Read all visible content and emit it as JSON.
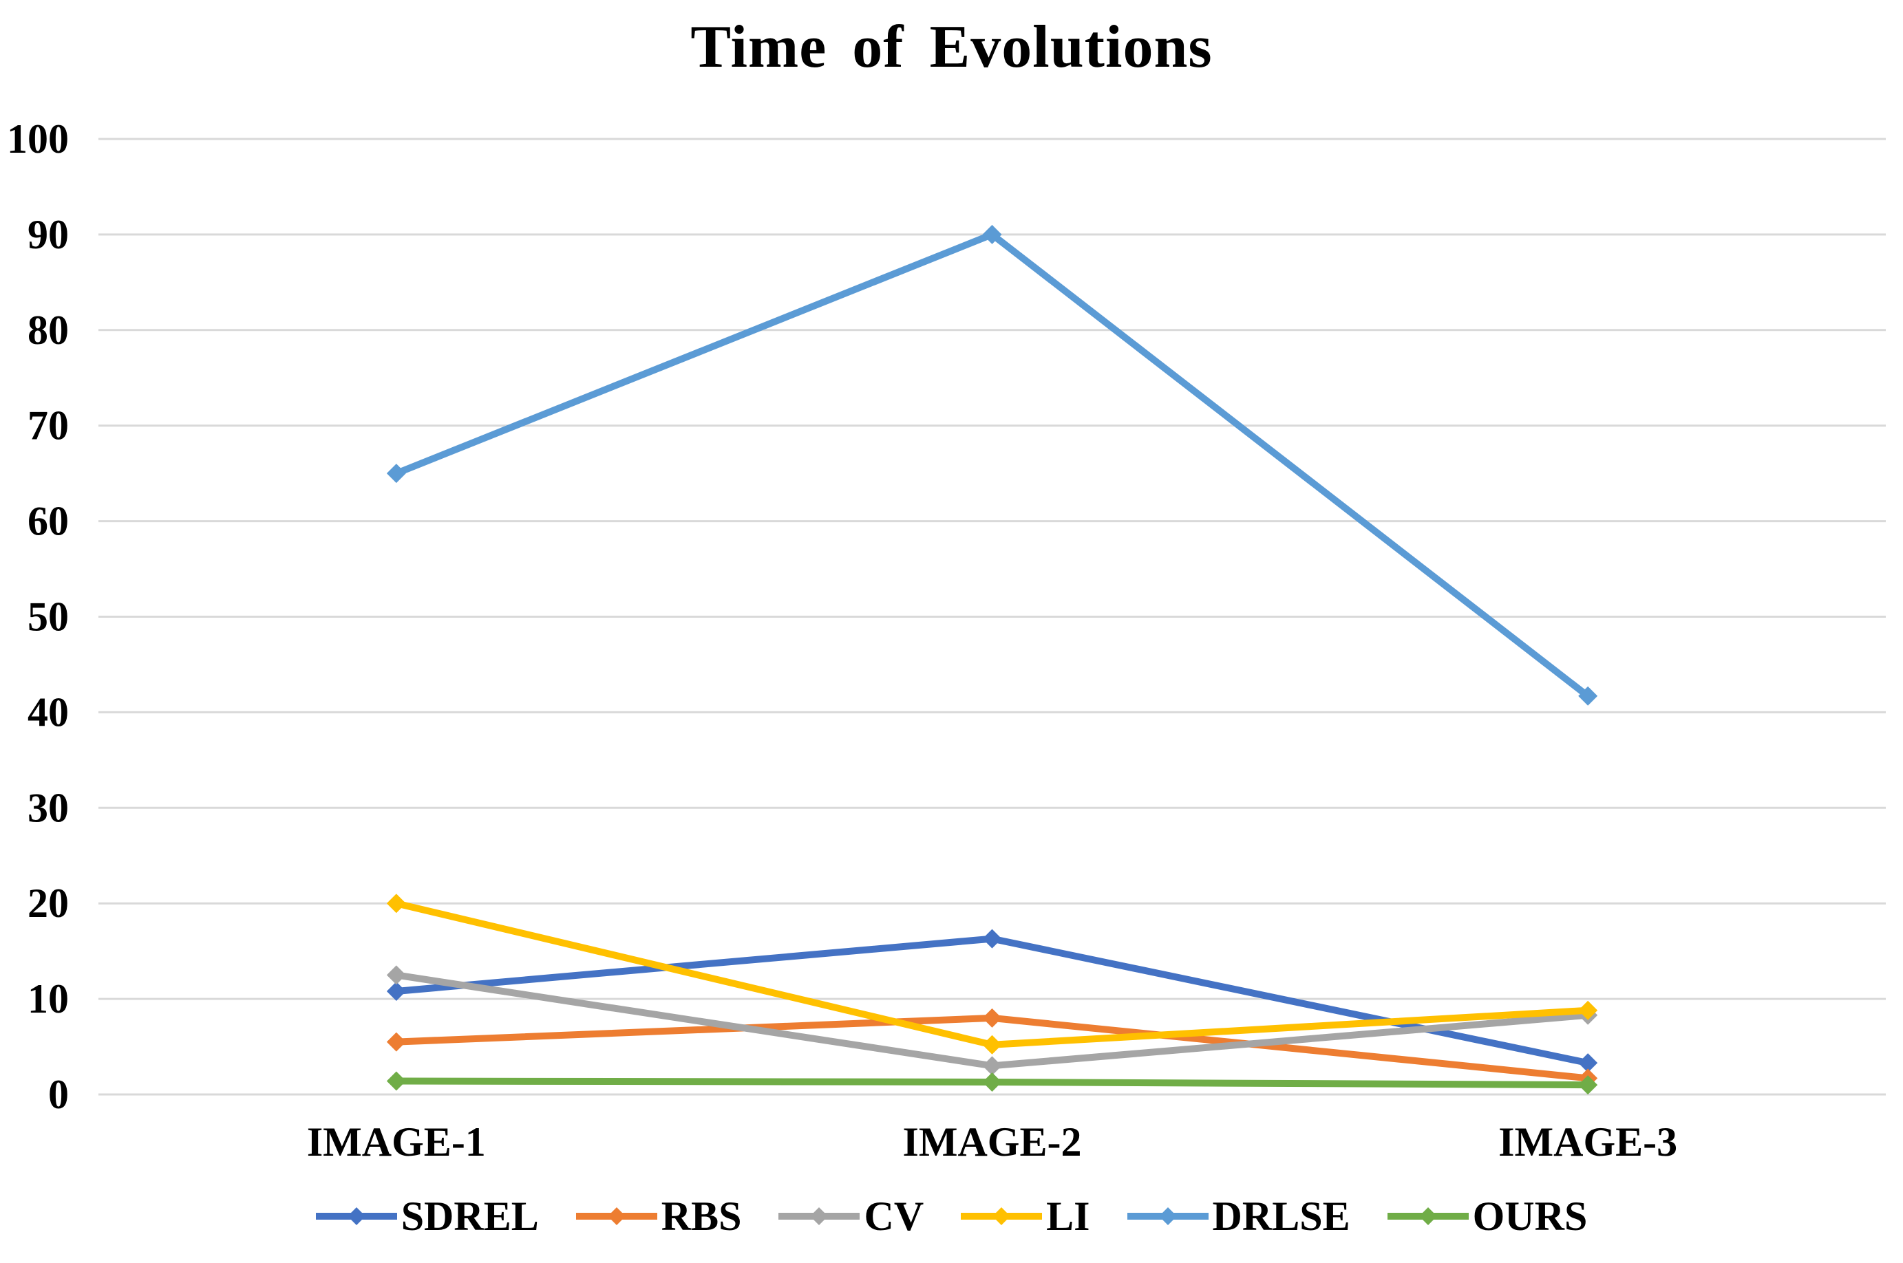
{
  "chart_data": {
    "type": "line",
    "title": "Time of  Evolutions",
    "categories": [
      "IMAGE-1",
      "IMAGE-2",
      "IMAGE-3"
    ],
    "series": [
      {
        "name": "SDREL",
        "color": "#4472C4",
        "values": [
          10.8,
          16.3,
          3.3
        ]
      },
      {
        "name": "RBS",
        "color": "#ED7D31",
        "values": [
          5.5,
          8.0,
          1.7
        ]
      },
      {
        "name": "CV",
        "color": "#A5A5A5",
        "values": [
          12.5,
          3.0,
          8.3
        ]
      },
      {
        "name": "LI",
        "color": "#FFC000",
        "values": [
          20.0,
          5.2,
          8.8
        ]
      },
      {
        "name": "DRLSE",
        "color": "#5B9BD5",
        "values": [
          65.0,
          90.0,
          41.7
        ]
      },
      {
        "name": "OURS",
        "color": "#70AD47",
        "values": [
          1.4,
          1.3,
          1.0
        ]
      }
    ],
    "xlabel": "",
    "ylabel": "",
    "ylim": [
      0,
      100
    ],
    "yticks": [
      0,
      10,
      20,
      30,
      40,
      50,
      60,
      70,
      80,
      90,
      100
    ],
    "grid": true,
    "grid_color": "#D9D9D9",
    "text_color": "#000000",
    "marker": "diamond",
    "legend_position": "bottom"
  }
}
